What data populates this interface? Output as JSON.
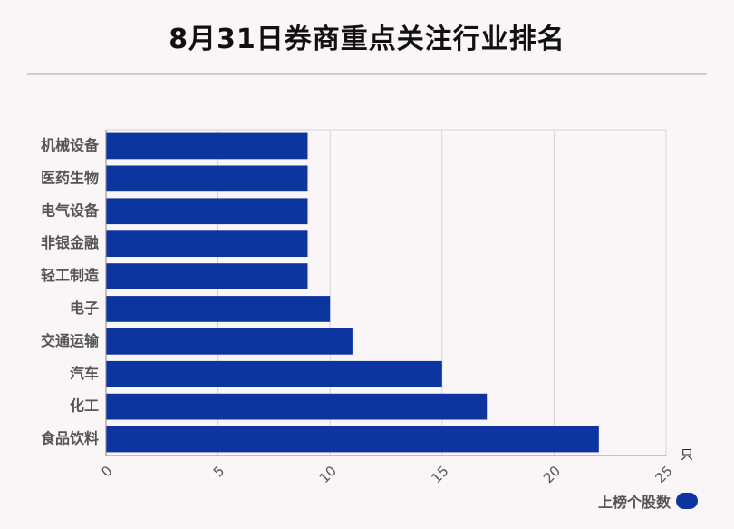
{
  "title": "8月31日券商重点关注行业排名",
  "legend": {
    "label": "上榜个股数",
    "color": "#0d35a0"
  },
  "chart_data": {
    "type": "bar",
    "orientation": "horizontal",
    "title": "8月31日券商重点关注行业排名",
    "categories": [
      "机械设备",
      "医药生物",
      "电气设备",
      "非银金融",
      "轻工制造",
      "电子",
      "交通运输",
      "汽车",
      "化工",
      "食品饮料"
    ],
    "series": [
      {
        "name": "上榜个股数",
        "values": [
          9,
          9,
          9,
          9,
          9,
          10,
          11,
          15,
          17,
          22
        ],
        "color": "#0d35a0"
      }
    ],
    "xlim": [
      0,
      25
    ],
    "xticks": [
      0,
      5,
      10,
      15,
      20,
      25
    ],
    "xunit": "只",
    "grid": true,
    "legend_position": "bottom-right"
  }
}
